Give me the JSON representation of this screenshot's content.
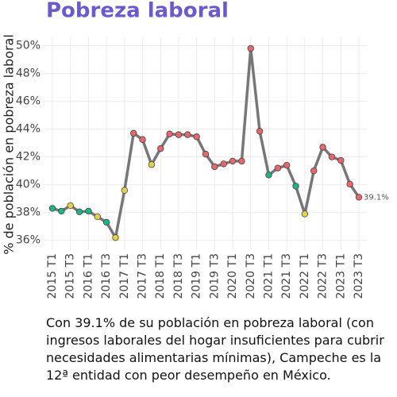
{
  "chart_data": {
    "type": "line",
    "title": "Pobreza laboral",
    "ylabel": "% de población en pobreza laboral",
    "caption": "Con 39.1% de su población en pobreza laboral (con ingresos laborales del hogar insuficientes para cubrir necesidades alimentarias mínimas), Campeche es la 12ª entidad con peor desempeño en México.",
    "categories": [
      "2015 T1",
      null,
      "2015 T3",
      null,
      "2016 T1",
      null,
      "2016 T3",
      null,
      "2017 T1",
      null,
      "2017 T3",
      null,
      "2018 T1",
      null,
      "2018 T3",
      null,
      "2019 T1",
      null,
      "2019 T3",
      null,
      "2020 T1",
      null,
      "2020 T3",
      null,
      "2021 T1",
      null,
      "2021 T3",
      null,
      "2022 T1",
      null,
      "2022 T3",
      null,
      "2023 T1",
      null,
      "2023 T3"
    ],
    "series": [
      {
        "color": "#777777",
        "values": [
          38.3,
          38.1,
          38.5,
          38.05,
          38.1,
          37.7,
          37.3,
          36.2,
          39.6,
          43.7,
          43.25,
          41.45,
          42.6,
          43.65,
          43.6,
          43.6,
          43.45,
          42.2,
          41.3,
          41.5,
          41.7,
          41.7,
          49.8,
          43.85,
          40.7,
          41.2,
          41.4,
          39.9,
          37.9,
          41.0,
          42.7,
          42.0,
          41.75,
          40.05,
          39.1
        ],
        "point_colors": [
          "#1db386",
          "#1db386",
          "#e6d14a",
          "#1db386",
          "#1db386",
          "#e6d14a",
          "#1db386",
          "#e6d14a",
          "#e6d14a",
          "#e8676b",
          "#e8676b",
          "#e6d14a",
          "#e8676b",
          "#e8676b",
          "#e8676b",
          "#e8676b",
          "#e8676b",
          "#e8676b",
          "#e8676b",
          "#e8676b",
          "#e8676b",
          "#e8676b",
          "#e8676b",
          "#e8676b",
          "#1db386",
          "#e8676b",
          "#e8676b",
          "#1db386",
          "#e6d14a",
          "#e8676b",
          "#e8676b",
          "#e8676b",
          "#e8676b",
          "#e8676b",
          "#e8676b"
        ],
        "value_labels": [
          null,
          null,
          null,
          null,
          null,
          null,
          null,
          null,
          null,
          null,
          null,
          null,
          null,
          null,
          null,
          null,
          null,
          null,
          null,
          null,
          null,
          null,
          null,
          null,
          null,
          null,
          null,
          null,
          null,
          null,
          null,
          null,
          null,
          null,
          "39.1%"
        ]
      }
    ],
    "ylim": [
      35.3,
      50.6
    ],
    "yticks": [
      {
        "value": 36,
        "label": "36%"
      },
      {
        "value": 38,
        "label": "38%"
      },
      {
        "value": 40,
        "label": "40%"
      },
      {
        "value": 42,
        "label": "42%"
      },
      {
        "value": 44,
        "label": "44%"
      },
      {
        "value": 46,
        "label": "46%"
      },
      {
        "value": 48,
        "label": "48%"
      },
      {
        "value": 50,
        "label": "50%"
      }
    ],
    "grid": true
  }
}
